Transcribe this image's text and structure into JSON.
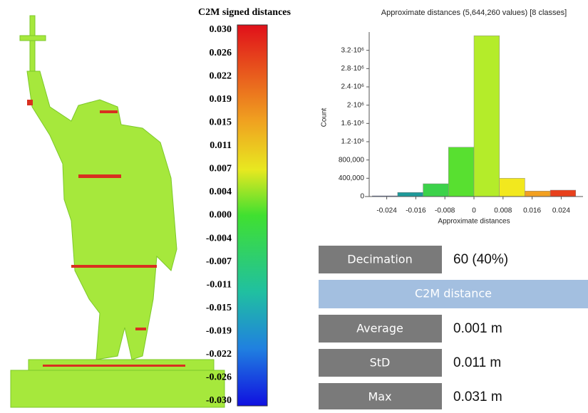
{
  "colorbar": {
    "title": "C2M signed distances",
    "labels": [
      "0.030",
      "0.026",
      "0.022",
      "0.019",
      "0.015",
      "0.011",
      "0.007",
      "0.004",
      "0.000",
      "-0.004",
      "-0.007",
      "-0.011",
      "-0.015",
      "-0.019",
      "-0.022",
      "-0.026",
      "-0.030"
    ]
  },
  "chart_data": {
    "type": "histogram",
    "title": "Approximate distances (5,644,260 values) [8 classes]",
    "xlabel": "Approximate distances",
    "ylabel": "Count",
    "bins": [
      -0.028,
      -0.021,
      -0.014,
      -0.007,
      0,
      0.007,
      0.014,
      0.021,
      0.028
    ],
    "values": [
      15000,
      90000,
      280000,
      1080000,
      3520000,
      400000,
      120000,
      140000
    ],
    "colors": [
      "#3050c8",
      "#1e9a9a",
      "#3cd24a",
      "#58e030",
      "#b4ec2a",
      "#f2e81e",
      "#f2a020",
      "#e8401c"
    ],
    "xlim": [
      -0.03,
      0.03
    ],
    "ylim": [
      0,
      3600000
    ],
    "xticks": [
      -0.024,
      -0.016,
      -0.008,
      0,
      0.008,
      0.016,
      0.024
    ],
    "yticks": [
      0,
      {
        "value": 400000,
        "label": "400,000"
      },
      {
        "value": 800000,
        "label": "800,000"
      },
      {
        "value": 1200000,
        "label": "1.2·10⁶"
      },
      {
        "value": 1600000,
        "label": "1.6·10⁶"
      },
      {
        "value": 2000000,
        "label": "2·10⁶"
      },
      {
        "value": 2400000,
        "label": "2.4·10⁶"
      },
      {
        "value": 2800000,
        "label": "2.8·10⁶"
      },
      {
        "value": 3200000,
        "label": "3.2·10⁶"
      }
    ]
  },
  "table": {
    "rows": [
      [
        "Decimation",
        "60 (40%)"
      ]
    ],
    "header": "C2M distance",
    "stats": [
      [
        "Average",
        "0.001 m"
      ],
      [
        "StD",
        "0.011 m"
      ],
      [
        "Max",
        "0.031 m"
      ]
    ]
  }
}
